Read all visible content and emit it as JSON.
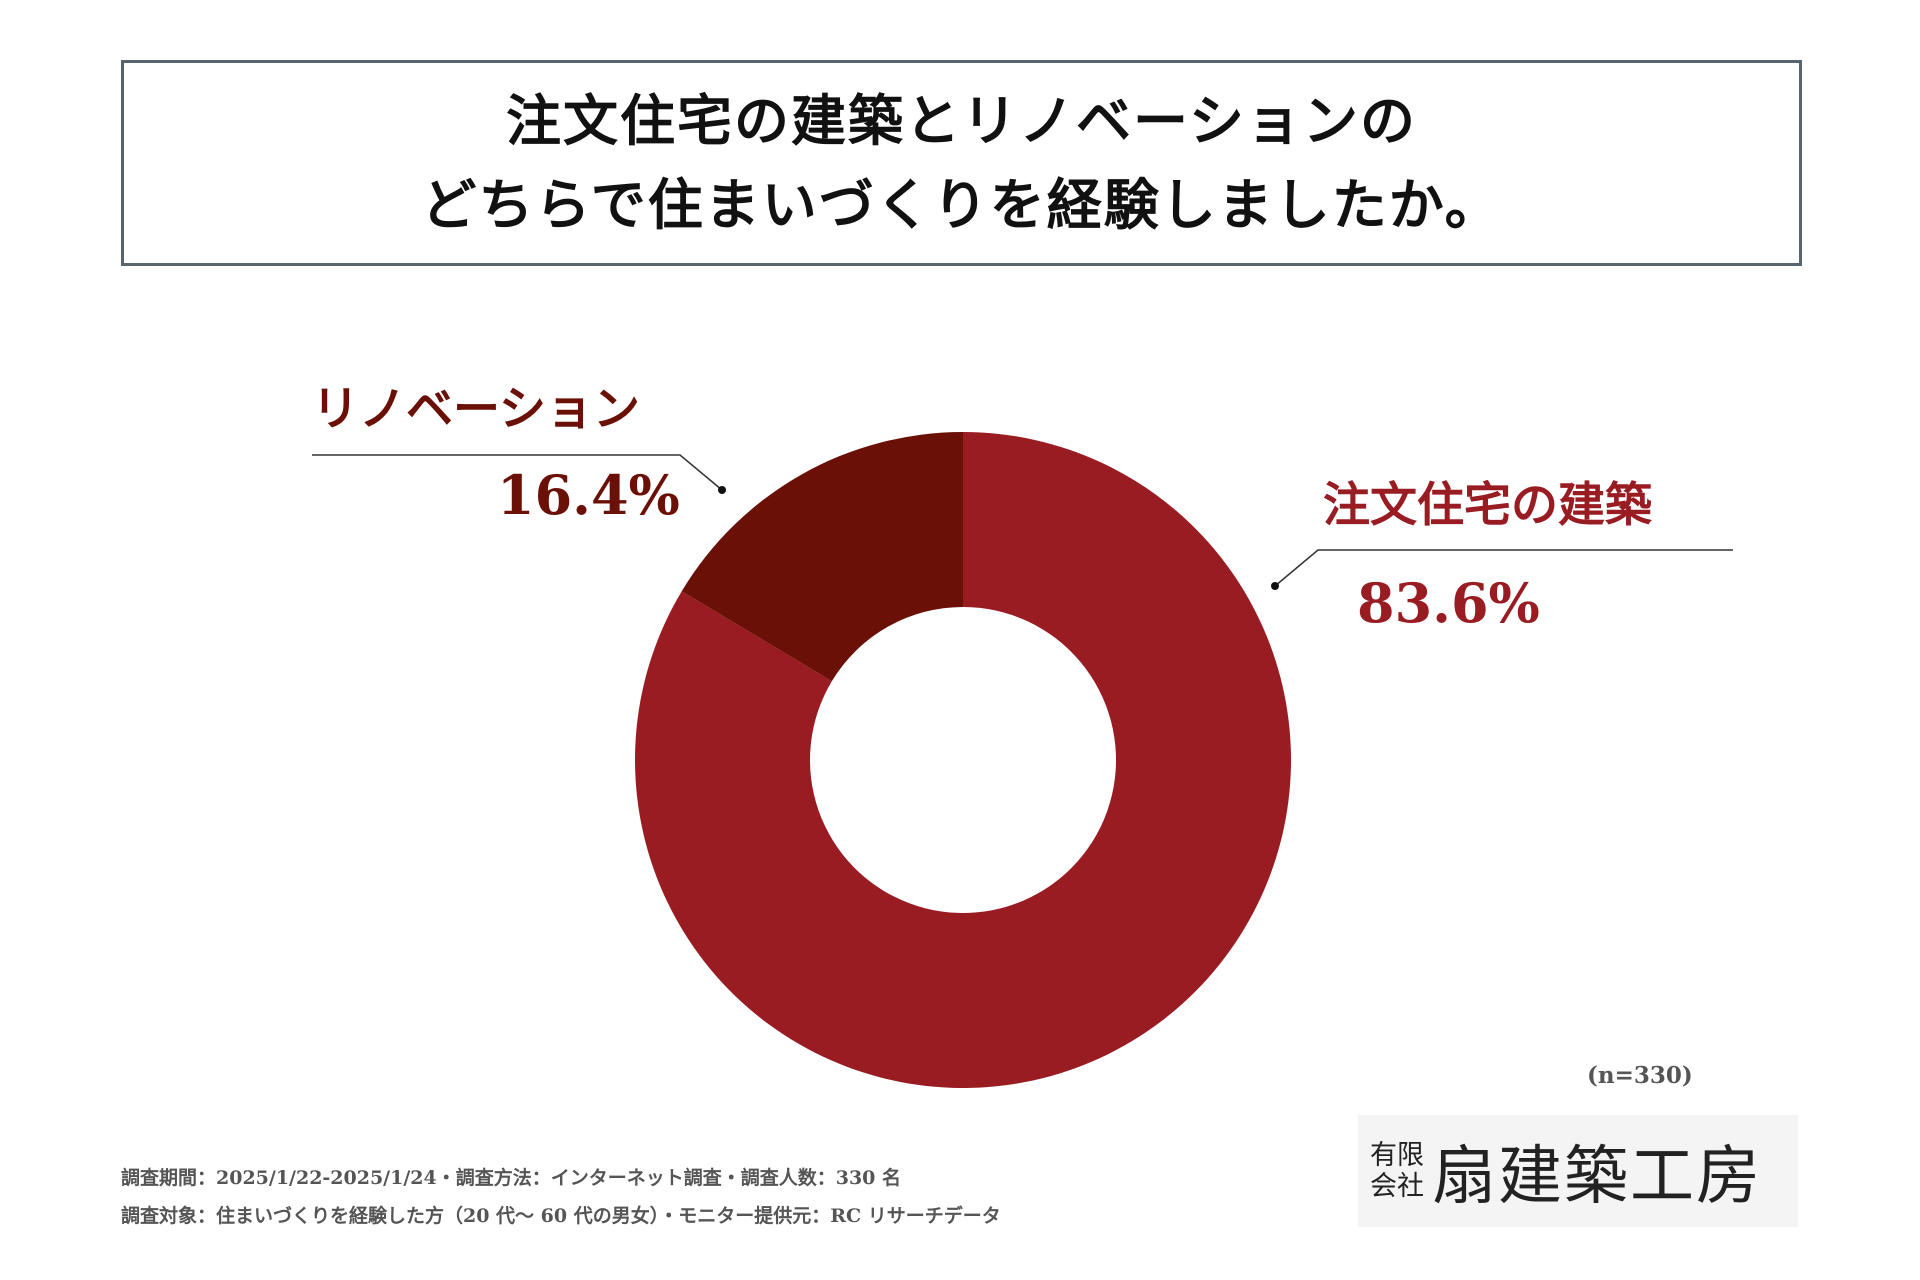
{
  "title": {
    "line1": "注文住宅の建築とリノベーションの",
    "line2": "どちらで住まいづくりを経験しましたか。"
  },
  "chart_data": {
    "type": "pie",
    "donut": true,
    "categories": [
      "注文住宅の建築",
      "リノベーション"
    ],
    "values": [
      83.6,
      16.4
    ],
    "value_labels": [
      "83.6%",
      "16.4%"
    ],
    "colors": [
      "#991c23",
      "#6b1006"
    ],
    "start_angle_deg": 0,
    "direction": "clockwise"
  },
  "sample_size": "(n=330)",
  "footnotes": {
    "line1": "調査期間：2025/1/22-2025/1/24・調査方法：インターネット調査・調査人数：330 名",
    "line2": "調査対象：住まいづくりを経験した方（20 代～ 60 代の男女）・モニター提供元：RC リサーチデータ"
  },
  "logo": {
    "small_top": "有限",
    "small_bottom": "会社",
    "main": "扇建築工房"
  }
}
